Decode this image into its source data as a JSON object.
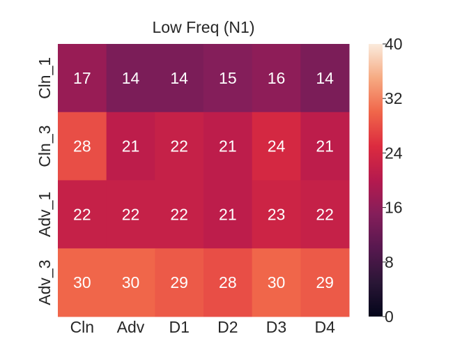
{
  "chart_data": {
    "type": "heatmap",
    "title": "Low Freq (N1)",
    "x_categories": [
      "Cln",
      "Adv",
      "D1",
      "D2",
      "D3",
      "D4"
    ],
    "y_categories": [
      "Cln_1",
      "Cln_3",
      "Adv_1",
      "Adv_3"
    ],
    "values": [
      [
        17,
        14,
        14,
        15,
        16,
        14
      ],
      [
        28,
        21,
        22,
        21,
        24,
        21
      ],
      [
        22,
        22,
        22,
        21,
        23,
        22
      ],
      [
        30,
        30,
        29,
        28,
        30,
        29
      ]
    ],
    "colorbar": {
      "min": 0,
      "max": 40,
      "ticks": [
        0,
        8,
        16,
        24,
        32,
        40
      ],
      "colormap": "rocket"
    },
    "grid": false,
    "annotation_color": "#ffffff"
  }
}
